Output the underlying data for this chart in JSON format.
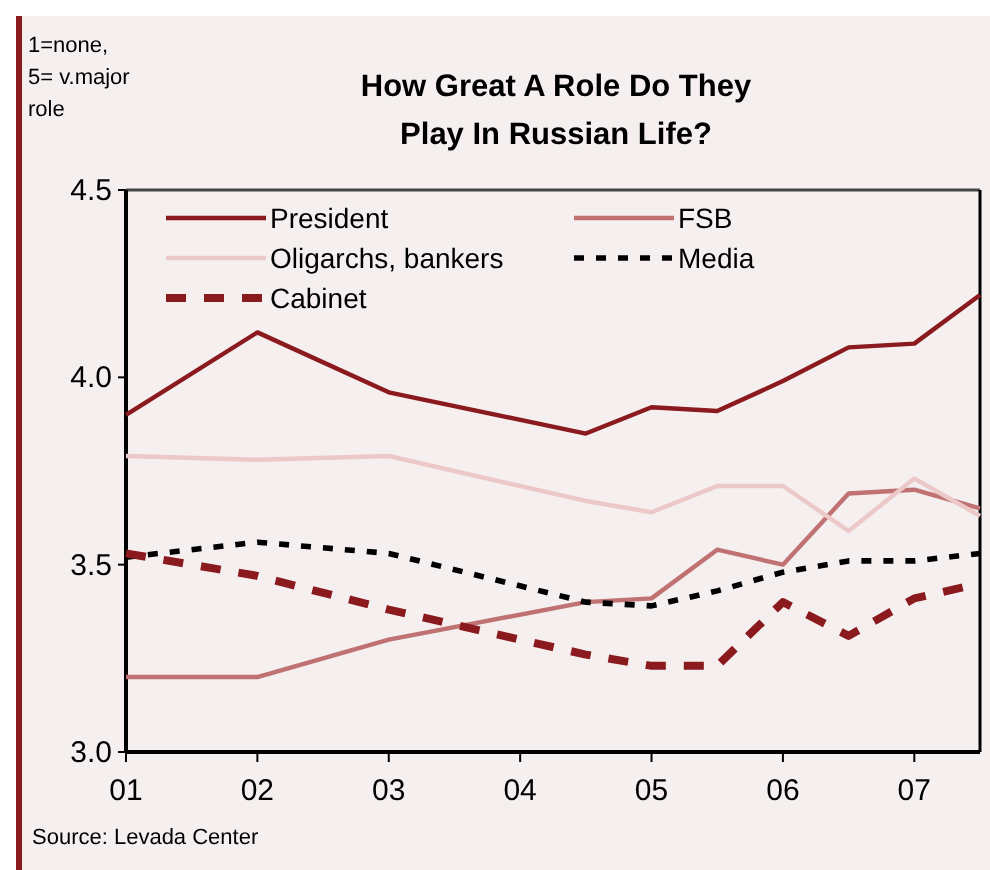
{
  "chart_data": {
    "type": "line",
    "title": "How Great A Role Do They Play In Russian Life?",
    "ylabel": "1=none, 5= v.major role",
    "annotations": [
      "Source: Levada Center"
    ],
    "x": [
      1,
      2,
      3,
      4.5,
      5,
      5.5,
      6,
      6.5,
      7,
      7.5
    ],
    "xlim": [
      1,
      7.5
    ],
    "xticks": [
      {
        "value": 1,
        "label": "01"
      },
      {
        "value": 2,
        "label": "02"
      },
      {
        "value": 3,
        "label": "03"
      },
      {
        "value": 4,
        "label": "04"
      },
      {
        "value": 5,
        "label": "05"
      },
      {
        "value": 6,
        "label": "06"
      },
      {
        "value": 7,
        "label": "07"
      }
    ],
    "ylim": [
      3,
      4.5
    ],
    "yticks": [
      {
        "value": 3,
        "label": "3.0"
      },
      {
        "value": 3.5,
        "label": "3.5"
      },
      {
        "value": 4,
        "label": "4.0"
      },
      {
        "value": 4.5,
        "label": "4.5"
      }
    ],
    "grid": false,
    "legend": "top",
    "marker": "none",
    "series": [
      {
        "name": "President",
        "color": "#8b1a1f",
        "line_style": "solid",
        "values": [
          3.9,
          4.12,
          3.96,
          3.85,
          3.92,
          3.91,
          3.99,
          4.08,
          4.09,
          4.22
        ]
      },
      {
        "name": "FSB",
        "color": "#c07272",
        "line_style": "solid",
        "values": [
          3.2,
          3.2,
          3.3,
          3.4,
          3.41,
          3.54,
          3.5,
          3.69,
          3.7,
          3.65
        ]
      },
      {
        "name": "Oligarchs, bankers",
        "color": "#ecc8c8",
        "line_style": "solid",
        "values": [
          3.79,
          3.78,
          3.79,
          3.67,
          3.64,
          3.71,
          3.71,
          3.59,
          3.73,
          3.63
        ]
      },
      {
        "name": "Media",
        "color": "#000000",
        "line_style": "dotted",
        "values": [
          3.52,
          3.56,
          3.53,
          3.4,
          3.39,
          3.43,
          3.48,
          3.51,
          3.51,
          3.53
        ]
      },
      {
        "name": "Cabinet",
        "color": "#8b1a1f",
        "line_style": "dashed",
        "values": [
          3.53,
          3.47,
          3.38,
          3.26,
          3.23,
          3.23,
          3.4,
          3.31,
          3.41,
          3.45
        ]
      }
    ]
  }
}
